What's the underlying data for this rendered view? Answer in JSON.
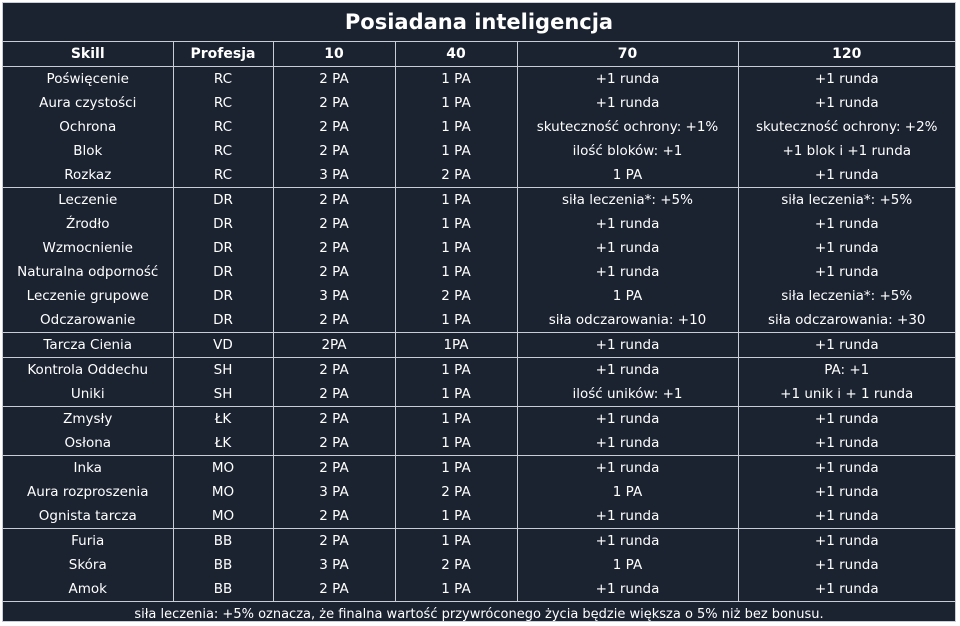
{
  "title": "Posiadana inteligencja",
  "headers": [
    "Skill",
    "Profesja",
    "10",
    "40",
    "70",
    "120"
  ],
  "rows": [
    {
      "skill": "Poświęcenie",
      "prof": "RC",
      "c10": "2 PA",
      "c40": "1 PA",
      "c70": "+1 runda",
      "c120": "+1 runda",
      "group_start": true
    },
    {
      "skill": "Aura czystości",
      "prof": "RC",
      "c10": "2 PA",
      "c40": "1 PA",
      "c70": "+1 runda",
      "c120": "+1 runda"
    },
    {
      "skill": "Ochrona",
      "prof": "RC",
      "c10": "2 PA",
      "c40": "1 PA",
      "c70": "skuteczność ochrony: +1%",
      "c120": "skuteczność ochrony: +2%"
    },
    {
      "skill": "Blok",
      "prof": "RC",
      "c10": "2 PA",
      "c40": "1 PA",
      "c70": "ilość bloków: +1",
      "c120": "+1 blok i +1 runda"
    },
    {
      "skill": "Rozkaz",
      "prof": "RC",
      "c10": "3 PA",
      "c40": "2 PA",
      "c70": "1 PA",
      "c120": "+1 runda"
    },
    {
      "skill": "Leczenie",
      "prof": "DR",
      "c10": "2 PA",
      "c40": "1 PA",
      "c70": "siła leczenia*: +5%",
      "c120": "siła leczenia*: +5%",
      "group_start": true
    },
    {
      "skill": "Źrodło",
      "prof": "DR",
      "c10": "2 PA",
      "c40": "1 PA",
      "c70": "+1 runda",
      "c120": "+1 runda"
    },
    {
      "skill": "Wzmocnienie",
      "prof": "DR",
      "c10": "2 PA",
      "c40": "1 PA",
      "c70": "+1 runda",
      "c120": "+1 runda"
    },
    {
      "skill": "Naturalna odporność",
      "prof": "DR",
      "c10": "2 PA",
      "c40": "1 PA",
      "c70": "+1 runda",
      "c120": "+1 runda"
    },
    {
      "skill": "Leczenie grupowe",
      "prof": "DR",
      "c10": "3 PA",
      "c40": "2 PA",
      "c70": "1 PA",
      "c120": "siła leczenia*: +5%"
    },
    {
      "skill": "Odczarowanie",
      "prof": "DR",
      "c10": "2 PA",
      "c40": "1 PA",
      "c70": "siła odczarowania: +10",
      "c120": "siła odczarowania: +30"
    },
    {
      "skill": "Tarcza Cienia",
      "prof": "VD",
      "c10": "2PA",
      "c40": "1PA",
      "c70": "+1 runda",
      "c120": "+1 runda",
      "group_start": true
    },
    {
      "skill": "Kontrola Oddechu",
      "prof": "SH",
      "c10": "2 PA",
      "c40": "1 PA",
      "c70": "+1 runda",
      "c120": "PA: +1",
      "group_start": true
    },
    {
      "skill": "Uniki",
      "prof": "SH",
      "c10": "2 PA",
      "c40": "1 PA",
      "c70": "ilość uników: +1",
      "c120": "+1 unik i + 1 runda"
    },
    {
      "skill": "Zmysły",
      "prof": "ŁK",
      "c10": "2 PA",
      "c40": "1 PA",
      "c70": "+1 runda",
      "c120": "+1 runda",
      "group_start": true
    },
    {
      "skill": "Osłona",
      "prof": "ŁK",
      "c10": "2 PA",
      "c40": "1 PA",
      "c70": "+1 runda",
      "c120": "+1 runda"
    },
    {
      "skill": "Inka",
      "prof": "MO",
      "c10": "2 PA",
      "c40": "1 PA",
      "c70": "+1 runda",
      "c120": "+1 runda",
      "group_start": true
    },
    {
      "skill": "Aura rozproszenia",
      "prof": "MO",
      "c10": "3 PA",
      "c40": "2 PA",
      "c70": "1 PA",
      "c120": "+1 runda"
    },
    {
      "skill": "Ognista tarcza",
      "prof": "MO",
      "c10": "2 PA",
      "c40": "1 PA",
      "c70": "+1 runda",
      "c120": "+1 runda"
    },
    {
      "skill": "Furia",
      "prof": "BB",
      "c10": "2 PA",
      "c40": "1 PA",
      "c70": "+1 runda",
      "c120": "+1 runda",
      "group_start": true
    },
    {
      "skill": "Skóra",
      "prof": "BB",
      "c10": "3 PA",
      "c40": "2 PA",
      "c70": "1 PA",
      "c120": "+1 runda"
    },
    {
      "skill": "Amok",
      "prof": "BB",
      "c10": "2 PA",
      "c40": "1 PA",
      "c70": "+1 runda",
      "c120": "+1 runda"
    }
  ],
  "footnote": "siła leczenia: +5% oznacza, że finalna wartość przywróconego życia będzie większa o 5% niż bez bonusu.",
  "colors": {
    "background": "#1b2331",
    "text": "#ffffff",
    "grid": "#c9ced6"
  }
}
